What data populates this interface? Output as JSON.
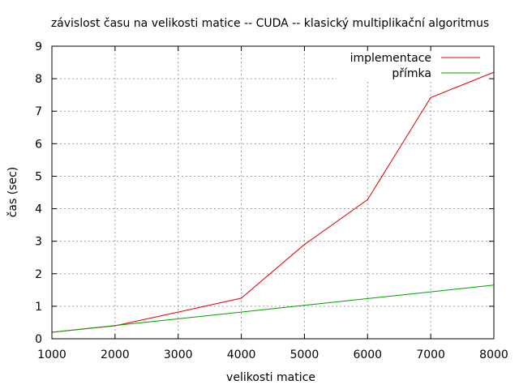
{
  "chart_data": {
    "type": "line",
    "title": "závislost času na velikosti matice -- CUDA -- klasický multiplikační algoritmus",
    "xlabel": "velikosti matice",
    "ylabel": "čas (sec)",
    "xlim": [
      1000,
      8000
    ],
    "ylim": [
      0,
      9
    ],
    "xticks": [
      1000,
      2000,
      3000,
      4000,
      5000,
      6000,
      7000,
      8000
    ],
    "yticks": [
      0,
      1,
      2,
      3,
      4,
      5,
      6,
      7,
      8,
      9
    ],
    "grid": true,
    "legend_position": "top-right",
    "series": [
      {
        "name": "implementace",
        "color": "#e00000",
        "x": [
          1000,
          2000,
          3000,
          4000,
          5000,
          6000,
          7000,
          8000
        ],
        "y": [
          0.2,
          0.4,
          0.82,
          1.25,
          2.9,
          4.28,
          7.42,
          8.2
        ]
      },
      {
        "name": "přímka",
        "color": "#00a000",
        "x": [
          1000,
          8000
        ],
        "y": [
          0.2,
          1.65
        ]
      }
    ]
  }
}
